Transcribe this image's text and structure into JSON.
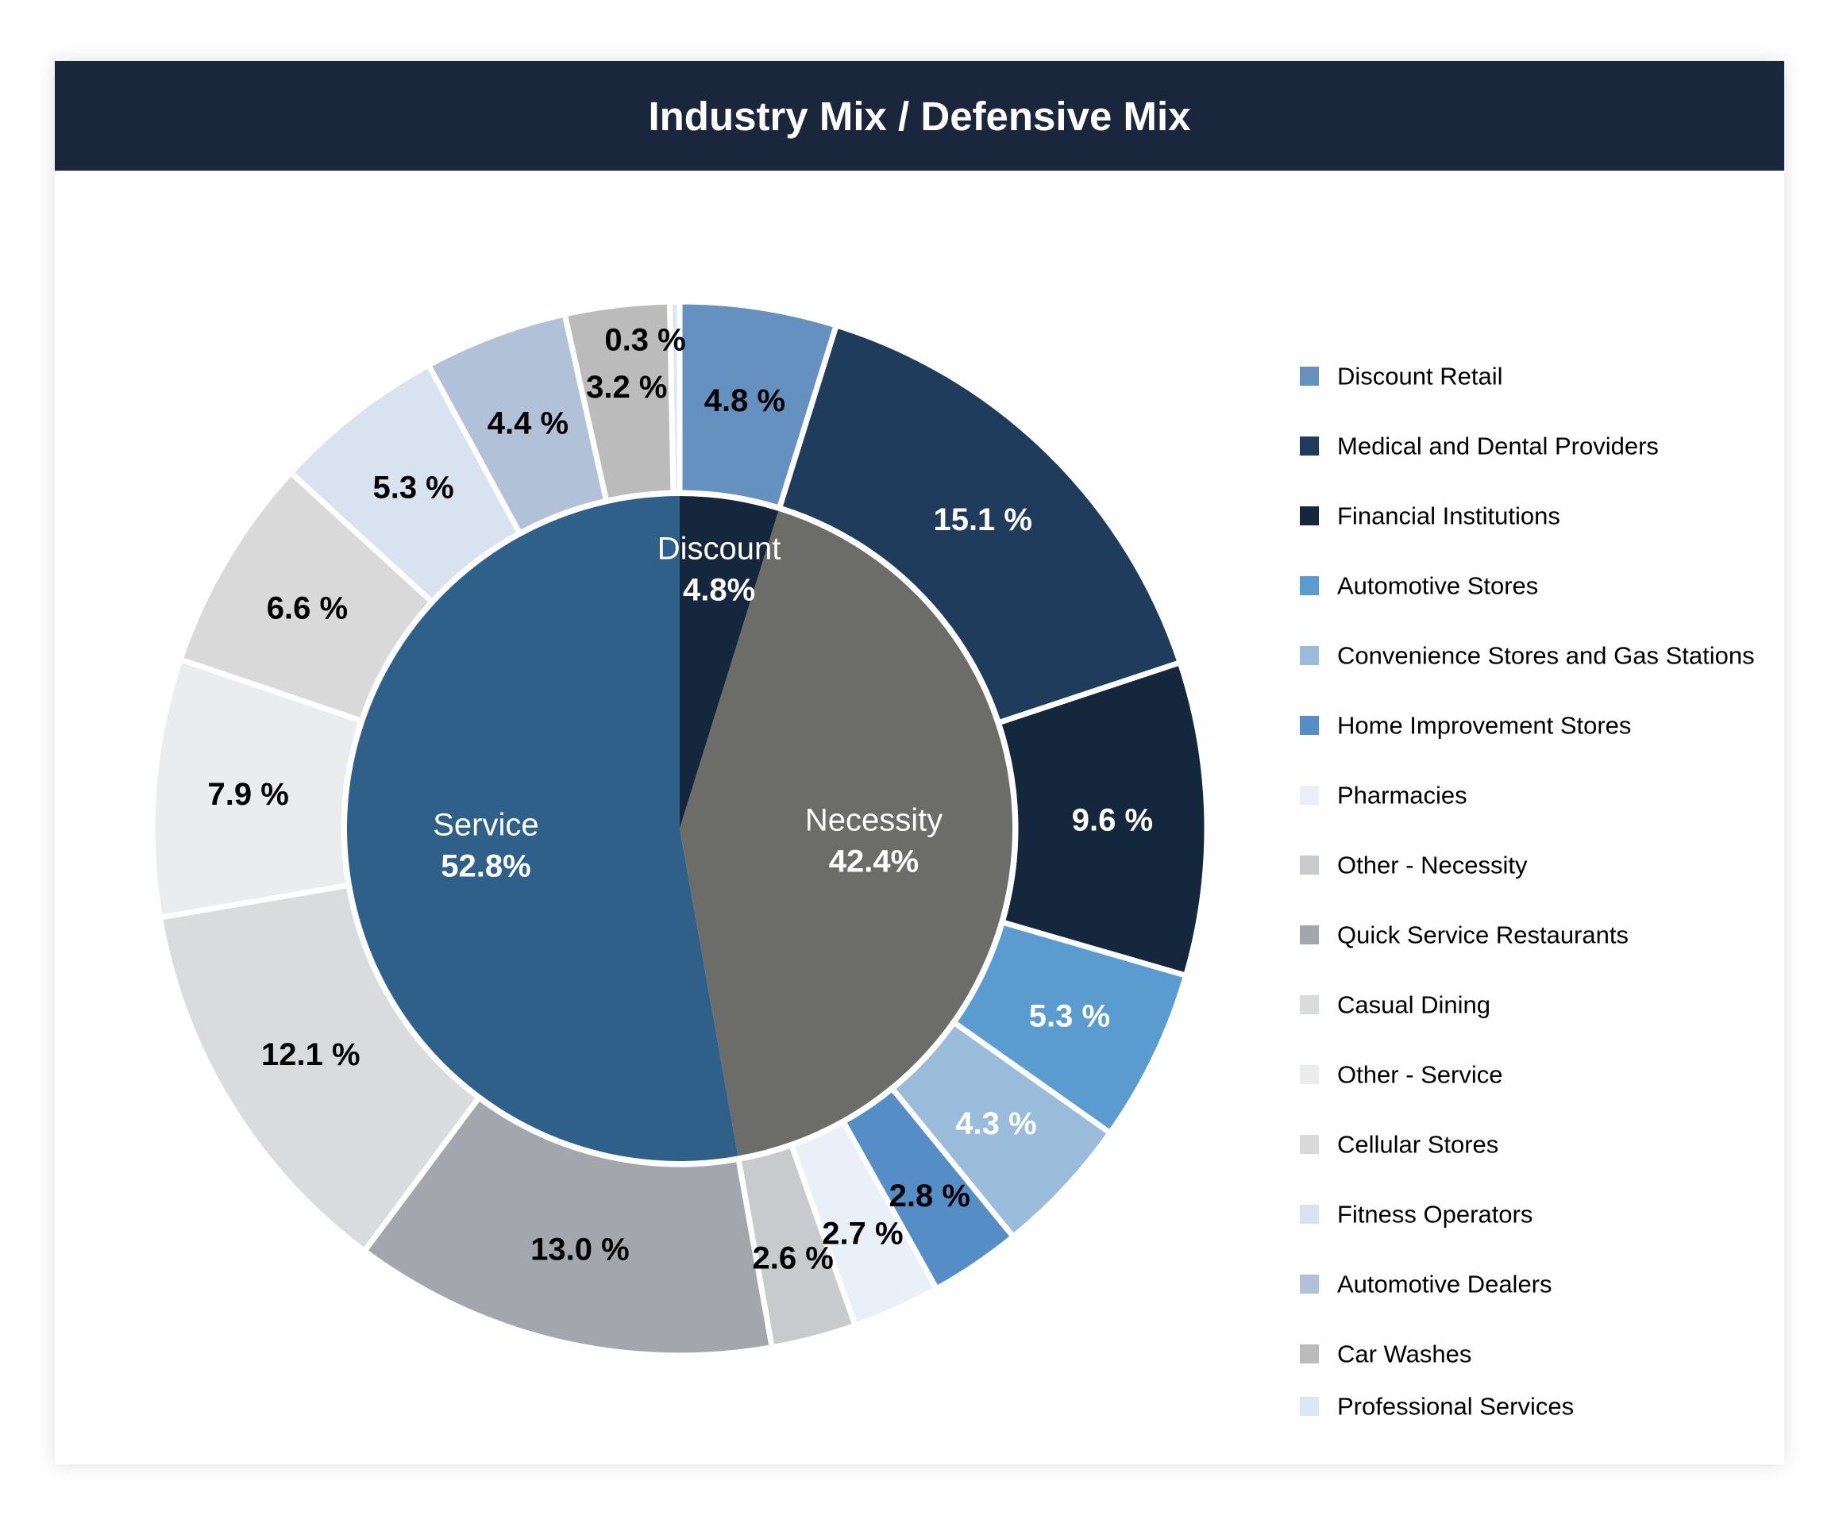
{
  "header": {
    "title": "Industry Mix / Defensive Mix"
  },
  "chart_data": {
    "type": "pie",
    "subtype": "nested-donut",
    "title": "Industry Mix / Defensive Mix",
    "legend_position": "right",
    "inner_ring": [
      {
        "label": "Discount",
        "value": 4.8,
        "value_label": "4.8%",
        "color": "#15273d"
      },
      {
        "label": "Necessity",
        "value": 42.4,
        "value_label": "42.4%",
        "color": "#6c6d69"
      },
      {
        "label": "Service",
        "value": 52.8,
        "value_label": "52.8%",
        "color": "#2e6089"
      }
    ],
    "outer_ring": [
      {
        "name": "Discount Retail",
        "value": 4.8,
        "value_label": "4.8 %",
        "color": "#6591c1",
        "label_color": "#000000"
      },
      {
        "name": "Medical and Dental Providers",
        "value": 15.1,
        "value_label": "15.1 %",
        "color": "#1f3c5d",
        "label_color": "#ffffff"
      },
      {
        "name": "Financial Institutions",
        "value": 9.6,
        "value_label": "9.6 %",
        "color": "#15273d",
        "label_color": "#ffffff"
      },
      {
        "name": "Automotive Stores",
        "value": 5.3,
        "value_label": "5.3 %",
        "color": "#5a9bd0",
        "label_color": "#ffffff"
      },
      {
        "name": "Convenience Stores and Gas Stations",
        "value": 4.3,
        "value_label": "4.3 %",
        "color": "#9abcdb",
        "label_color": "#ffffff"
      },
      {
        "name": "Home Improvement Stores",
        "value": 2.8,
        "value_label": "2.8 %",
        "color": "#558dc7",
        "label_color": "#000000"
      },
      {
        "name": "Pharmacies",
        "value": 2.7,
        "value_label": "2.7 %",
        "color": "#e9f0f8",
        "label_color": "#000000"
      },
      {
        "name": "Other - Necessity",
        "value": 2.6,
        "value_label": "2.6 %",
        "color": "#c9cacd",
        "label_color": "#000000"
      },
      {
        "name": "Quick Service Restaurants",
        "value": 13.0,
        "value_label": "13.0 %",
        "color": "#a3a7ad",
        "label_color": "#000000"
      },
      {
        "name": "Casual Dining",
        "value": 12.1,
        "value_label": "12.1 %",
        "color": "#dadbdd",
        "label_color": "#000000"
      },
      {
        "name": "Other - Service",
        "value": 7.9,
        "value_label": "7.9 %",
        "color": "#ebecee",
        "label_color": "#000000"
      },
      {
        "name": "Cellular Stores",
        "value": 6.6,
        "value_label": "6.6 %",
        "color": "#d9d9d9",
        "label_color": "#000000"
      },
      {
        "name": "Fitness Operators",
        "value": 5.3,
        "value_label": "5.3 %",
        "color": "#d8e3ef",
        "label_color": "#000000"
      },
      {
        "name": "Automotive Dealers",
        "value": 4.4,
        "value_label": "4.4 %",
        "color": "#b1c1d8",
        "label_color": "#000000"
      },
      {
        "name": "Car Washes",
        "value": 3.2,
        "value_label": "3.2 %",
        "color": "#bbbbbb",
        "label_color": "#000000"
      },
      {
        "name": "Professional Services",
        "value": 0.3,
        "value_label": "0.3 %",
        "color": "#dbe7f4",
        "label_color": "#000000"
      }
    ]
  }
}
